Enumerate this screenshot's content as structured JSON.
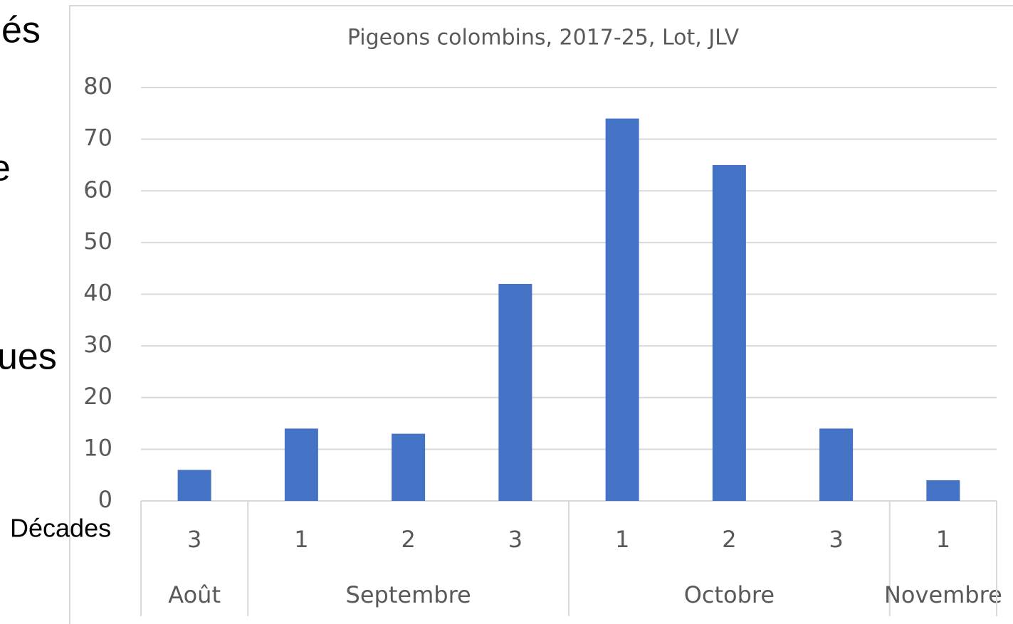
{
  "slide_fragments": [
    "és",
    "e",
    "ues"
  ],
  "chart_data": {
    "type": "bar",
    "title": "Pigeons colombins, 2017-25, Lot, JLV",
    "x_label": "Décades",
    "categories": [
      "3",
      "1",
      "2",
      "3",
      "1",
      "2",
      "3",
      "1"
    ],
    "groups": [
      {
        "name": "Août",
        "span": 1
      },
      {
        "name": "Septembre",
        "span": 3
      },
      {
        "name": "Octobre",
        "span": 3
      },
      {
        "name": "Novembre",
        "span": 1
      }
    ],
    "values": [
      6,
      14,
      13,
      42,
      74,
      65,
      14,
      4
    ],
    "color": "#4472c4",
    "ylim": [
      0,
      80
    ],
    "yticks": [
      0,
      10,
      20,
      30,
      40,
      50,
      60,
      70,
      80
    ],
    "grid": true
  }
}
